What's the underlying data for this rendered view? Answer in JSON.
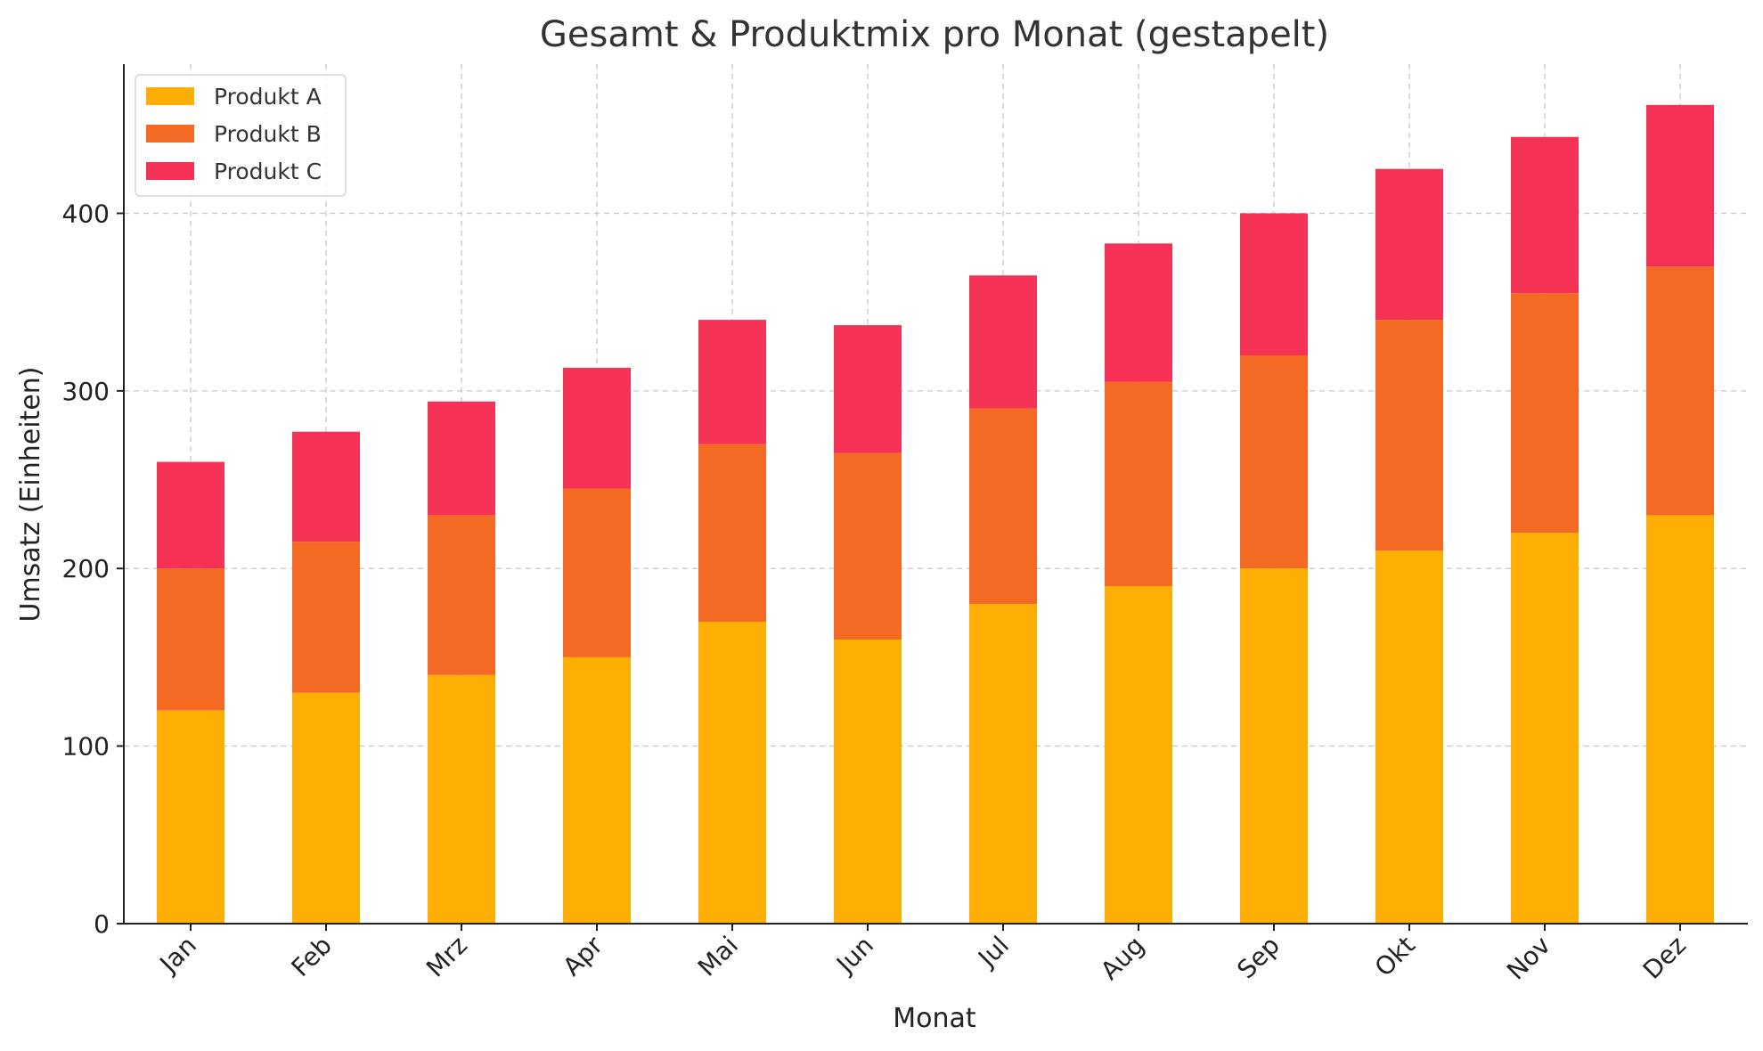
{
  "chart_data": {
    "type": "bar",
    "stacked": true,
    "title": "Gesamt & Produktmix pro Monat (gestapelt)",
    "xlabel": "Monat",
    "ylabel": "Umsatz (Einheiten)",
    "categories": [
      "Jan",
      "Feb",
      "Mrz",
      "Apr",
      "Mai",
      "Jun",
      "Jul",
      "Aug",
      "Sep",
      "Okt",
      "Nov",
      "Dez"
    ],
    "series": [
      {
        "name": "Produkt A",
        "color": "#FFAE03",
        "values": [
          120,
          130,
          140,
          150,
          170,
          160,
          180,
          190,
          200,
          210,
          220,
          230
        ]
      },
      {
        "name": "Produkt B",
        "color": "#F46A22",
        "values": [
          80,
          85,
          90,
          95,
          100,
          105,
          110,
          115,
          120,
          130,
          135,
          140
        ]
      },
      {
        "name": "Produkt C",
        "color": "#F53256",
        "values": [
          60,
          62,
          64,
          68,
          70,
          72,
          75,
          78,
          80,
          85,
          88,
          91
        ]
      }
    ],
    "ylim": [
      0,
      484
    ],
    "yticks": [
      0,
      100,
      200,
      300,
      400
    ],
    "grid": true,
    "legend_position": "top-left"
  }
}
